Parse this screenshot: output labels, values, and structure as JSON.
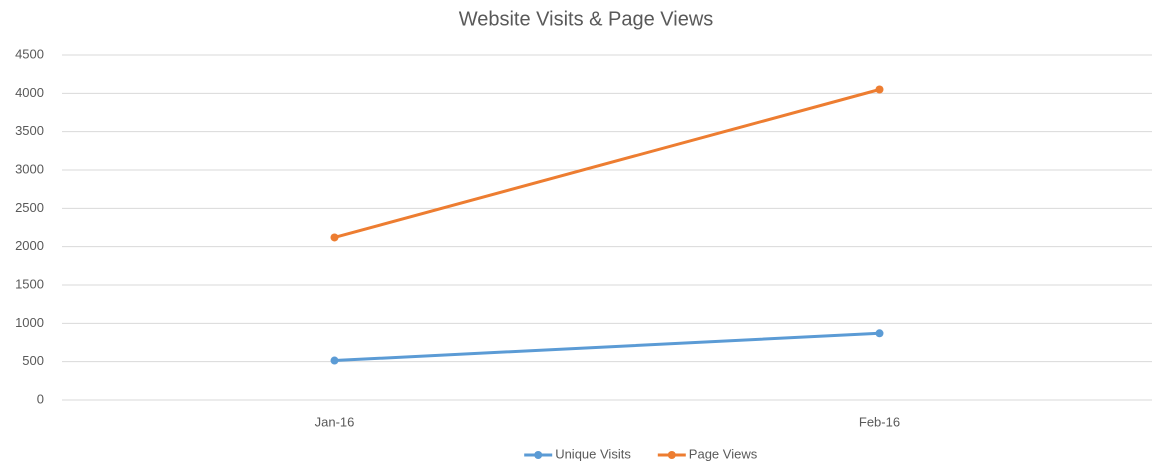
{
  "chart_data": {
    "type": "line",
    "title": "Website Visits & Page Views",
    "categories": [
      "Jan-16",
      "Feb-16"
    ],
    "series": [
      {
        "name": "Unique Visits",
        "color": "#5b9bd5",
        "values": [
          515,
          870
        ]
      },
      {
        "name": "Page Views",
        "color": "#ed7d31",
        "values": [
          2120,
          4050
        ]
      }
    ],
    "ylim": [
      0,
      4500
    ],
    "yticks": [
      0,
      500,
      1000,
      1500,
      2000,
      2500,
      3000,
      3500,
      4000,
      4500
    ],
    "grid": true,
    "legend": "bottom"
  }
}
